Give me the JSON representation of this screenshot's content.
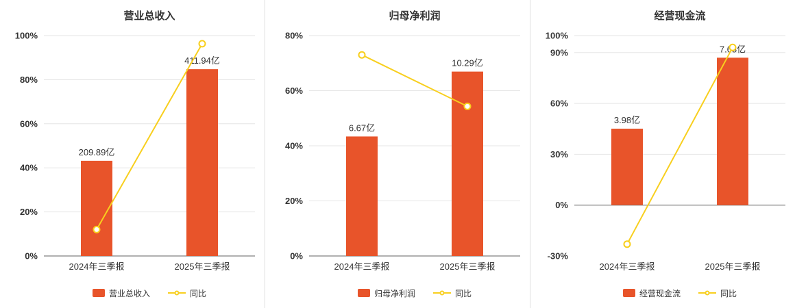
{
  "colors": {
    "bar": "#e8542a",
    "line": "#f8cf1e",
    "grid": "#e5e5e5",
    "zero_axis": "#616161",
    "text": "#333333"
  },
  "chart_data": [
    {
      "type": "bar+line",
      "title": "营业总收入",
      "categories": [
        "2024年三季报",
        "2025年三季报"
      ],
      "bar": {
        "name": "营业总收入",
        "unit": "亿",
        "values": [
          209.89,
          411.94
        ],
        "labels": [
          "209.89亿",
          "411.94亿"
        ],
        "axis_max_value": 486
      },
      "line": {
        "name": "同比",
        "unit": "%",
        "values": [
          12,
          96.3
        ]
      },
      "y_axis": {
        "min": 0,
        "max": 100,
        "tick_values": [
          100,
          80,
          60,
          40,
          20,
          0
        ],
        "tick_labels": [
          "100%",
          "80%",
          "60%",
          "40%",
          "20%",
          "0%"
        ]
      },
      "legend_position": "bottom"
    },
    {
      "type": "bar+line",
      "title": "归母净利润",
      "categories": [
        "2024年三季报",
        "2025年三季报"
      ],
      "bar": {
        "name": "归母净利润",
        "unit": "亿",
        "values": [
          6.67,
          10.29
        ],
        "labels": [
          "6.67亿",
          "10.29亿"
        ],
        "axis_max_value": 12.3
      },
      "line": {
        "name": "同比",
        "unit": "%",
        "values": [
          73,
          54.3
        ]
      },
      "y_axis": {
        "min": 0,
        "max": 80,
        "tick_values": [
          80,
          60,
          40,
          20,
          0
        ],
        "tick_labels": [
          "80%",
          "60%",
          "40%",
          "20%",
          "0%"
        ]
      },
      "legend_position": "bottom"
    },
    {
      "type": "bar+line",
      "title": "经营现金流",
      "categories": [
        "2024年三季报",
        "2025年三季报"
      ],
      "bar": {
        "name": "经营现金流",
        "unit": "亿",
        "values": [
          3.98,
          7.68
        ],
        "labels": [
          "3.98亿",
          "7.68亿"
        ],
        "axis_max_value": 8.83
      },
      "line": {
        "name": "同比",
        "unit": "%",
        "values": [
          -23,
          93
        ]
      },
      "y_axis": {
        "min": -30,
        "max": 100,
        "tick_values": [
          100,
          90,
          60,
          30,
          0,
          -30
        ],
        "tick_labels": [
          "100%",
          "90%",
          "60%",
          "30%",
          "0%",
          "-30%"
        ]
      },
      "legend_position": "bottom"
    }
  ]
}
